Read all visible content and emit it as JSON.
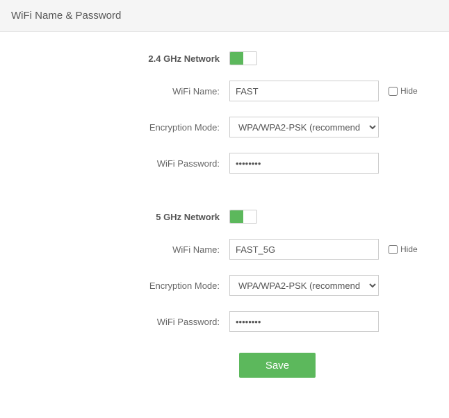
{
  "header": {
    "title": "WiFi Name & Password"
  },
  "sections": {
    "band24": {
      "title": "2.4 GHz Network",
      "enabled": true,
      "name_label": "WiFi Name:",
      "name_value": "FAST",
      "hide_label": "Hide",
      "hide_checked": false,
      "enc_label": "Encryption Mode:",
      "enc_value": "WPA/WPA2-PSK (recommend",
      "pwd_label": "WiFi Password:",
      "pwd_value": "••••••••"
    },
    "band5": {
      "title": "5 GHz Network",
      "enabled": true,
      "name_label": "WiFi Name:",
      "name_value": "FAST_5G",
      "hide_label": "Hide",
      "hide_checked": false,
      "enc_label": "Encryption Mode:",
      "enc_value": "WPA/WPA2-PSK (recommend",
      "pwd_label": "WiFi Password:",
      "pwd_value": "••••••••"
    }
  },
  "buttons": {
    "save": "Save"
  },
  "colors": {
    "accent": "#5cb85c",
    "border": "#cccccc",
    "header_bg": "#f5f5f5"
  }
}
